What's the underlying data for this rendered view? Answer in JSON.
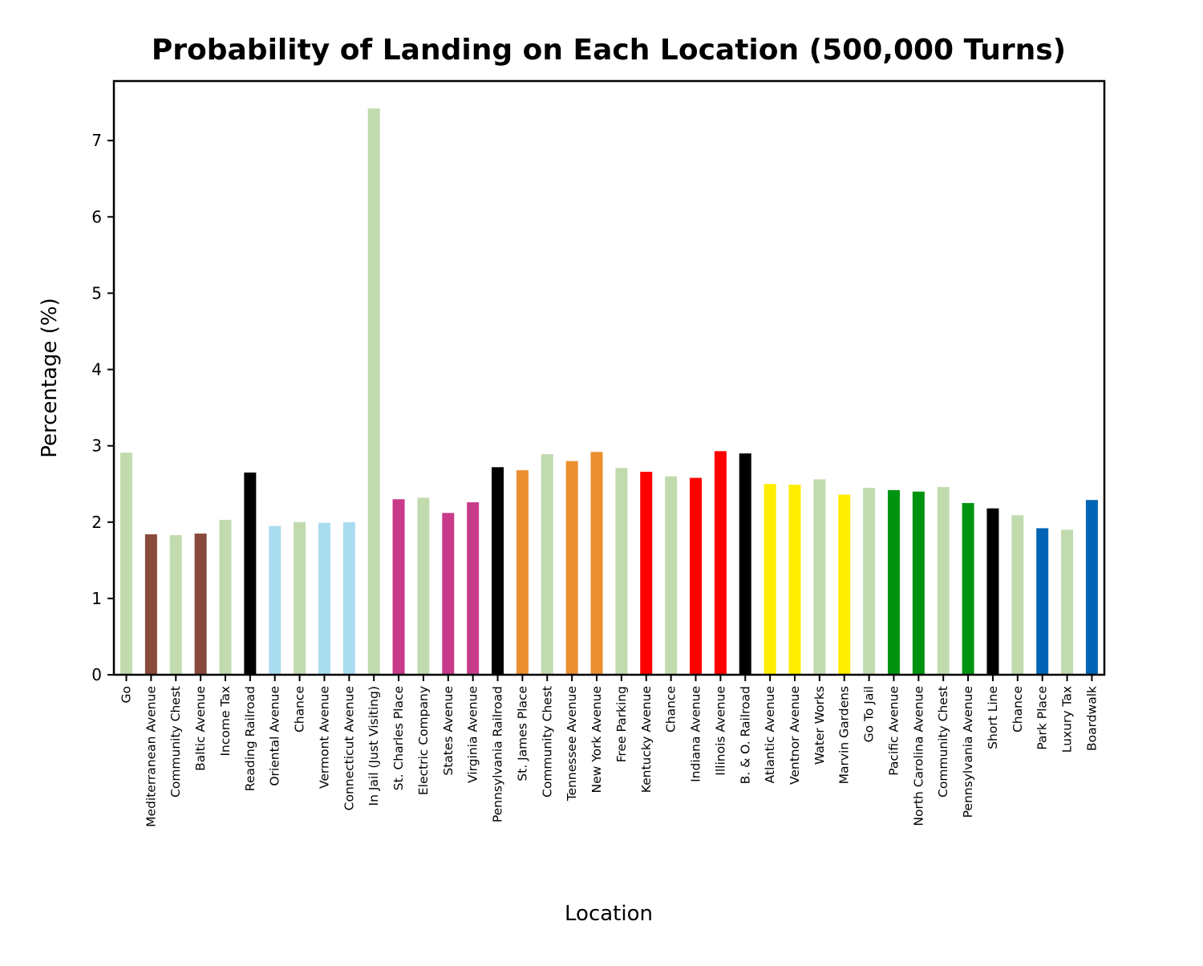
{
  "chart_data": {
    "type": "bar",
    "title": "Probability of Landing on Each Location (500,000 Turns)",
    "xlabel": "Location",
    "ylabel": "Percentage (%)",
    "ylim": [
      0,
      7.78
    ],
    "yticks": [
      "0",
      "1",
      "2",
      "3",
      "4",
      "5",
      "6",
      "7"
    ],
    "grid": false,
    "legend": "none",
    "categories": [
      "Go",
      "Mediterranean Avenue",
      "Community Chest",
      "Baltic Avenue",
      "Income Tax",
      "Reading Railroad",
      "Oriental Avenue",
      "Chance",
      "Vermont Avenue",
      "Connecticut Avenue",
      "In Jail (Just Visiting)",
      "St. Charles Place",
      "Electric Company",
      "States Avenue",
      "Virginia Avenue",
      "Pennsylvania Railroad",
      "St. James Place",
      "Community Chest",
      "Tennessee Avenue",
      "New York Avenue",
      "Free Parking",
      "Kentucky Avenue",
      "Chance",
      "Indiana Avenue",
      "Illinois Avenue",
      "B. & O. Railroad",
      "Atlantic Avenue",
      "Ventnor Avenue",
      "Water Works",
      "Marvin Gardens",
      "Go To Jail",
      "Pacific Avenue",
      "North Carolina Avenue",
      "Community Chest",
      "Pennsylvania Avenue",
      "Short Line",
      "Chance",
      "Park Place",
      "Luxury Tax",
      "Boardwalk"
    ],
    "values": [
      2.91,
      1.84,
      1.83,
      1.85,
      2.03,
      2.65,
      1.95,
      2.0,
      1.99,
      2.0,
      7.42,
      2.3,
      2.32,
      2.12,
      2.26,
      2.72,
      2.68,
      2.89,
      2.8,
      2.92,
      2.71,
      2.66,
      2.6,
      2.58,
      2.93,
      2.9,
      2.5,
      2.49,
      2.56,
      2.36,
      2.45,
      2.42,
      2.4,
      2.46,
      2.25,
      2.18,
      2.09,
      1.92,
      1.9,
      2.29
    ],
    "colors": [
      "#c1dbae",
      "#874a3b",
      "#c1dbae",
      "#874a3b",
      "#c1dbae",
      "#000000",
      "#aadcf0",
      "#c1dbae",
      "#aadcf0",
      "#aadcf0",
      "#c1dbae",
      "#c83b8a",
      "#c1dbae",
      "#c83b8a",
      "#c83b8a",
      "#000000",
      "#ec8f2f",
      "#c1dbae",
      "#ec8f2f",
      "#ec8f2f",
      "#c1dbae",
      "#ff0000",
      "#c1dbae",
      "#ff0000",
      "#ff0000",
      "#000000",
      "#ffee00",
      "#ffee00",
      "#c1dbae",
      "#ffee00",
      "#c1dbae",
      "#009310",
      "#009310",
      "#c1dbae",
      "#009310",
      "#000000",
      "#c1dbae",
      "#0065b5",
      "#c1dbae",
      "#0065b5"
    ]
  }
}
